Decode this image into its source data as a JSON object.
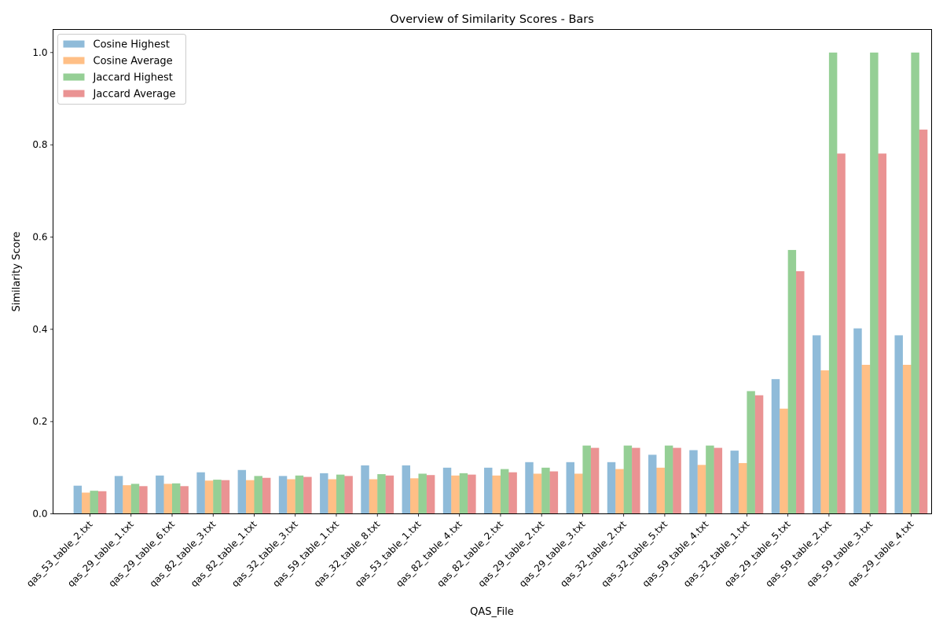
{
  "chart_data": {
    "type": "bar",
    "title": "Overview of Similarity Scores - Bars",
    "xlabel": "QAS_File",
    "ylabel": "Similarity Score",
    "ylim": [
      0,
      1.05
    ],
    "yticks": [
      "0.0",
      "0.2",
      "0.4",
      "0.6",
      "0.8",
      "1.0"
    ],
    "ytick_values": [
      0,
      0.2,
      0.4,
      0.6,
      0.8,
      1.0
    ],
    "grid": false,
    "legend_placement": "upper-left",
    "categories": [
      "qas_53_table_2.txt",
      "qas_29_table_1.txt",
      "qas_29_table_6.txt",
      "qas_82_table_3.txt",
      "qas_82_table_1.txt",
      "qas_32_table_3.txt",
      "qas_59_table_1.txt",
      "qas_32_table_8.txt",
      "qas_53_table_1.txt",
      "qas_82_table_4.txt",
      "qas_82_table_2.txt",
      "qas_29_table_2.txt",
      "qas_29_table_3.txt",
      "qas_32_table_2.txt",
      "qas_32_table_5.txt",
      "qas_59_table_4.txt",
      "qas_32_table_1.txt",
      "qas_29_table_5.txt",
      "qas_59_table_2.txt",
      "qas_59_table_3.txt",
      "qas_29_table_4.txt"
    ],
    "series": [
      {
        "name": "Cosine Highest",
        "color": "#1f77b4",
        "values": [
          0.061,
          0.082,
          0.083,
          0.09,
          0.095,
          0.082,
          0.088,
          0.105,
          0.105,
          0.1,
          0.1,
          0.112,
          0.112,
          0.112,
          0.128,
          0.138,
          0.137,
          0.292,
          0.387,
          0.402,
          0.387
        ]
      },
      {
        "name": "Cosine Average",
        "color": "#ff7f0e",
        "values": [
          0.046,
          0.062,
          0.065,
          0.072,
          0.073,
          0.075,
          0.075,
          0.075,
          0.077,
          0.083,
          0.083,
          0.087,
          0.087,
          0.097,
          0.1,
          0.106,
          0.11,
          0.228,
          0.311,
          0.323,
          0.323
        ]
      },
      {
        "name": "Jaccard Highest",
        "color": "#2ca02c",
        "values": [
          0.05,
          0.065,
          0.066,
          0.074,
          0.082,
          0.083,
          0.085,
          0.086,
          0.087,
          0.088,
          0.097,
          0.1,
          0.148,
          0.148,
          0.148,
          0.148,
          0.266,
          0.572,
          1.0,
          1.0,
          1.0
        ]
      },
      {
        "name": "Jaccard Average",
        "color": "#d62728",
        "values": [
          0.049,
          0.06,
          0.06,
          0.073,
          0.078,
          0.08,
          0.082,
          0.083,
          0.084,
          0.085,
          0.09,
          0.092,
          0.143,
          0.143,
          0.143,
          0.143,
          0.257,
          0.526,
          0.781,
          0.781,
          0.833
        ]
      }
    ]
  }
}
